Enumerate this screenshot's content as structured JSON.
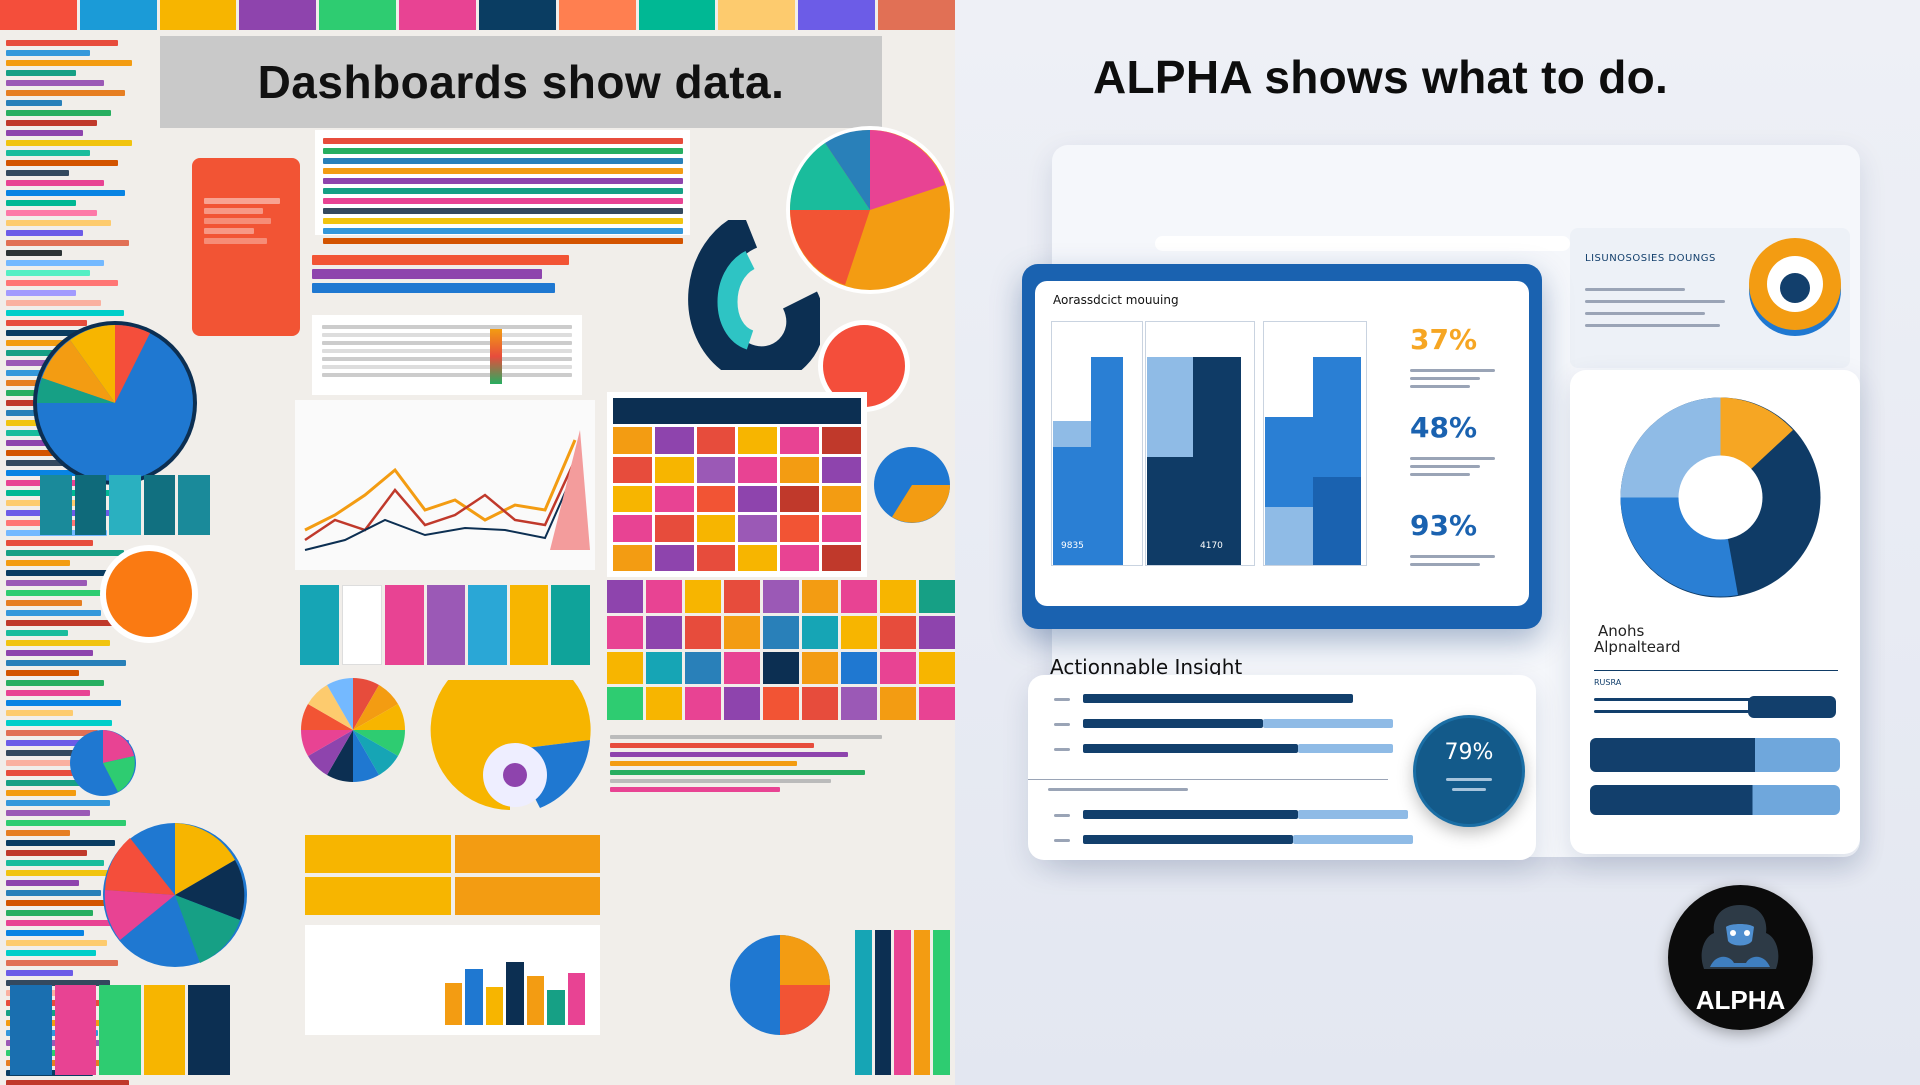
{
  "left_headline": "Dashboards show data.",
  "right_headline": "ALPHA shows what to do.",
  "metrics_card": {
    "title": "Aorassdcict mouuing",
    "percents": [
      "37%",
      "48%",
      "93%"
    ],
    "bar_labels": [
      "9835",
      "4170"
    ]
  },
  "insight": {
    "title": "Actionnable Insight",
    "badge_value": "79%"
  },
  "side_panel": {
    "header": "LISUNOSOSIES DOUNGS",
    "label_line1": "Anohs",
    "label_line2": "Alpnalteard",
    "section_label": "RUSRA"
  },
  "logo_text": "ALPHA",
  "colors": {
    "navy": "#0f3b66",
    "blue": "#2a7fd4",
    "light_blue": "#8fbbe6",
    "orange": "#f6a623"
  }
}
